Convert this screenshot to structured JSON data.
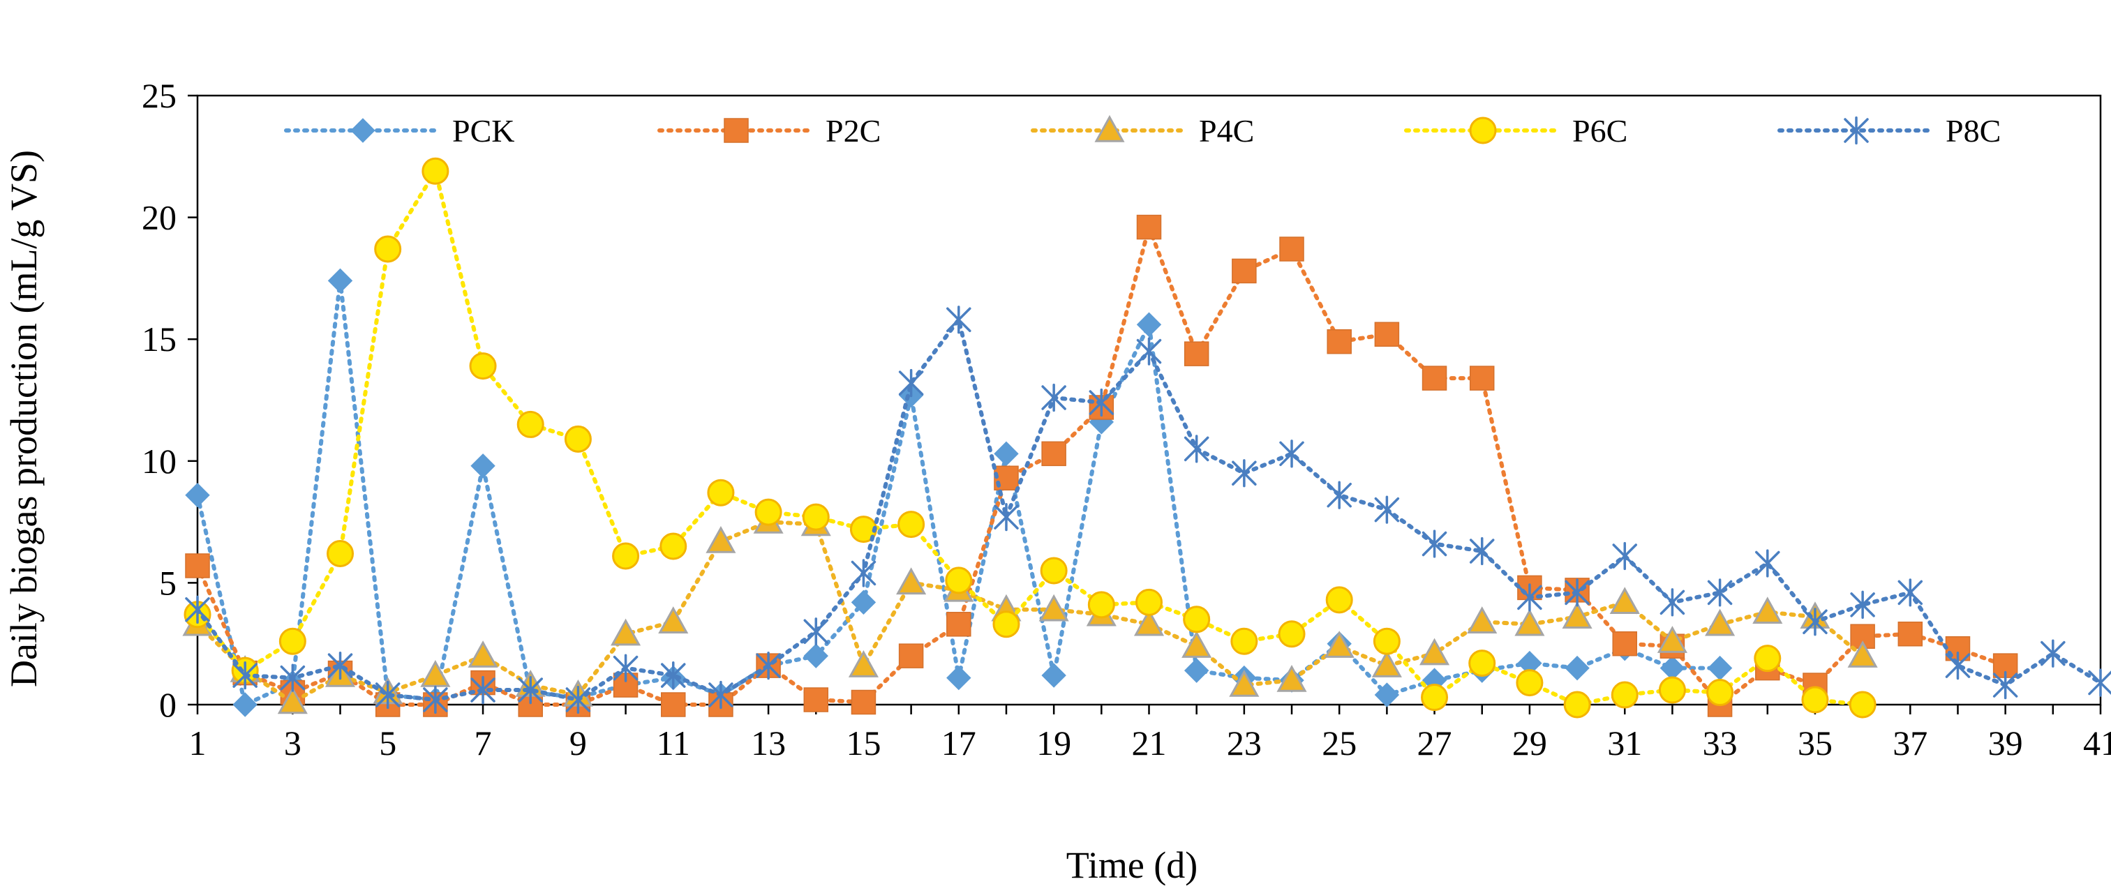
{
  "chart_data": {
    "type": "line",
    "xlabel": "Time (d)",
    "ylabel": "Daily biogas production  (mL/g VS)",
    "xlim": [
      1,
      41
    ],
    "ylim": [
      0,
      25
    ],
    "x_ticks": [
      1,
      3,
      5,
      7,
      9,
      11,
      13,
      15,
      17,
      19,
      21,
      23,
      25,
      27,
      29,
      31,
      33,
      35,
      37,
      39,
      41
    ],
    "y_ticks": [
      0,
      5,
      10,
      15,
      20,
      25
    ],
    "legend_position": "top",
    "grid": false,
    "series": [
      {
        "name": "PCK",
        "marker": "diamond",
        "color": "#5B9BD5",
        "x": [
          1,
          2,
          3,
          4,
          5,
          6,
          7,
          8,
          9,
          10,
          11,
          12,
          13,
          14,
          15,
          16,
          17,
          18,
          19,
          20,
          21,
          22,
          23,
          24,
          25,
          26,
          27,
          28,
          29,
          30,
          31,
          32,
          33
        ],
        "y": [
          8.6,
          0.0,
          0.9,
          17.4,
          0.4,
          0.2,
          9.8,
          0.5,
          0.3,
          0.8,
          1.1,
          0.4,
          1.6,
          2.0,
          4.2,
          12.7,
          1.1,
          10.3,
          1.2,
          11.6,
          15.6,
          1.4,
          1.1,
          1.0,
          2.5,
          0.4,
          1.0,
          1.4,
          1.7,
          1.5,
          2.3,
          1.5,
          1.5
        ]
      },
      {
        "name": "P2C",
        "marker": "square",
        "color": "#ED7D31",
        "x": [
          1,
          2,
          3,
          4,
          5,
          6,
          7,
          8,
          9,
          10,
          11,
          12,
          13,
          14,
          15,
          16,
          17,
          18,
          19,
          20,
          21,
          22,
          23,
          24,
          25,
          26,
          27,
          28,
          29,
          30,
          31,
          32,
          33,
          34,
          35,
          36,
          37,
          38,
          39
        ],
        "y": [
          5.7,
          1.3,
          0.5,
          1.3,
          0.0,
          0.0,
          0.9,
          0.0,
          0.0,
          0.8,
          0.0,
          0.0,
          1.6,
          0.2,
          0.1,
          2.0,
          3.3,
          9.3,
          10.3,
          12.2,
          19.6,
          14.4,
          17.8,
          18.7,
          14.9,
          15.2,
          13.4,
          13.4,
          4.8,
          4.7,
          2.5,
          2.4,
          0.0,
          1.5,
          0.8,
          2.8,
          2.9,
          2.3,
          1.6
        ]
      },
      {
        "name": "P4C",
        "marker": "triangle",
        "color": "#F0B323",
        "x": [
          1,
          2,
          3,
          4,
          5,
          6,
          7,
          8,
          9,
          10,
          11,
          12,
          13,
          14,
          15,
          16,
          17,
          18,
          19,
          20,
          21,
          22,
          23,
          24,
          25,
          26,
          27,
          28,
          29,
          30,
          31,
          32,
          33,
          34,
          35,
          36
        ],
        "y": [
          3.3,
          1.4,
          0.1,
          1.2,
          0.5,
          1.2,
          2.0,
          0.8,
          0.4,
          2.9,
          3.4,
          6.7,
          7.5,
          7.4,
          1.6,
          5.0,
          4.7,
          3.9,
          3.9,
          3.7,
          3.3,
          2.4,
          0.8,
          1.0,
          2.4,
          1.6,
          2.1,
          3.4,
          3.3,
          3.6,
          4.2,
          2.6,
          3.3,
          3.8,
          3.6,
          2.0
        ]
      },
      {
        "name": "P6C",
        "marker": "circle",
        "color": "#FFE500",
        "x": [
          1,
          2,
          3,
          4,
          5,
          6,
          7,
          8,
          9,
          10,
          11,
          12,
          13,
          14,
          15,
          16,
          17,
          18,
          19,
          20,
          21,
          22,
          23,
          24,
          25,
          26,
          27,
          28,
          29,
          30,
          31,
          32,
          33,
          34,
          35,
          36
        ],
        "y": [
          3.7,
          1.4,
          2.6,
          6.2,
          18.7,
          21.9,
          13.9,
          11.5,
          10.9,
          6.1,
          6.5,
          8.7,
          7.9,
          7.7,
          7.2,
          7.4,
          5.1,
          3.3,
          5.5,
          4.1,
          4.2,
          3.5,
          2.6,
          2.9,
          4.3,
          2.6,
          0.3,
          1.7,
          0.9,
          0.0,
          0.4,
          0.6,
          0.5,
          1.9,
          0.2,
          0.0
        ]
      },
      {
        "name": "P8C",
        "marker": "asterisk",
        "color": "#4A7FC1",
        "x": [
          1,
          2,
          3,
          4,
          5,
          6,
          7,
          8,
          9,
          10,
          11,
          12,
          13,
          14,
          15,
          16,
          17,
          18,
          19,
          20,
          21,
          22,
          23,
          24,
          25,
          26,
          27,
          28,
          29,
          30,
          31,
          32,
          33,
          34,
          35,
          36,
          37,
          38,
          39,
          40,
          41
        ],
        "y": [
          3.9,
          1.2,
          1.1,
          1.6,
          0.4,
          0.2,
          0.6,
          0.6,
          0.2,
          1.5,
          1.2,
          0.4,
          1.6,
          3.0,
          5.4,
          13.2,
          15.8,
          7.7,
          12.6,
          12.4,
          14.5,
          10.5,
          9.5,
          10.3,
          8.6,
          8.0,
          6.6,
          6.3,
          4.4,
          4.6,
          6.1,
          4.2,
          4.6,
          5.8,
          3.4,
          4.1,
          4.6,
          1.6,
          0.8,
          2.1,
          0.9
        ]
      }
    ]
  }
}
